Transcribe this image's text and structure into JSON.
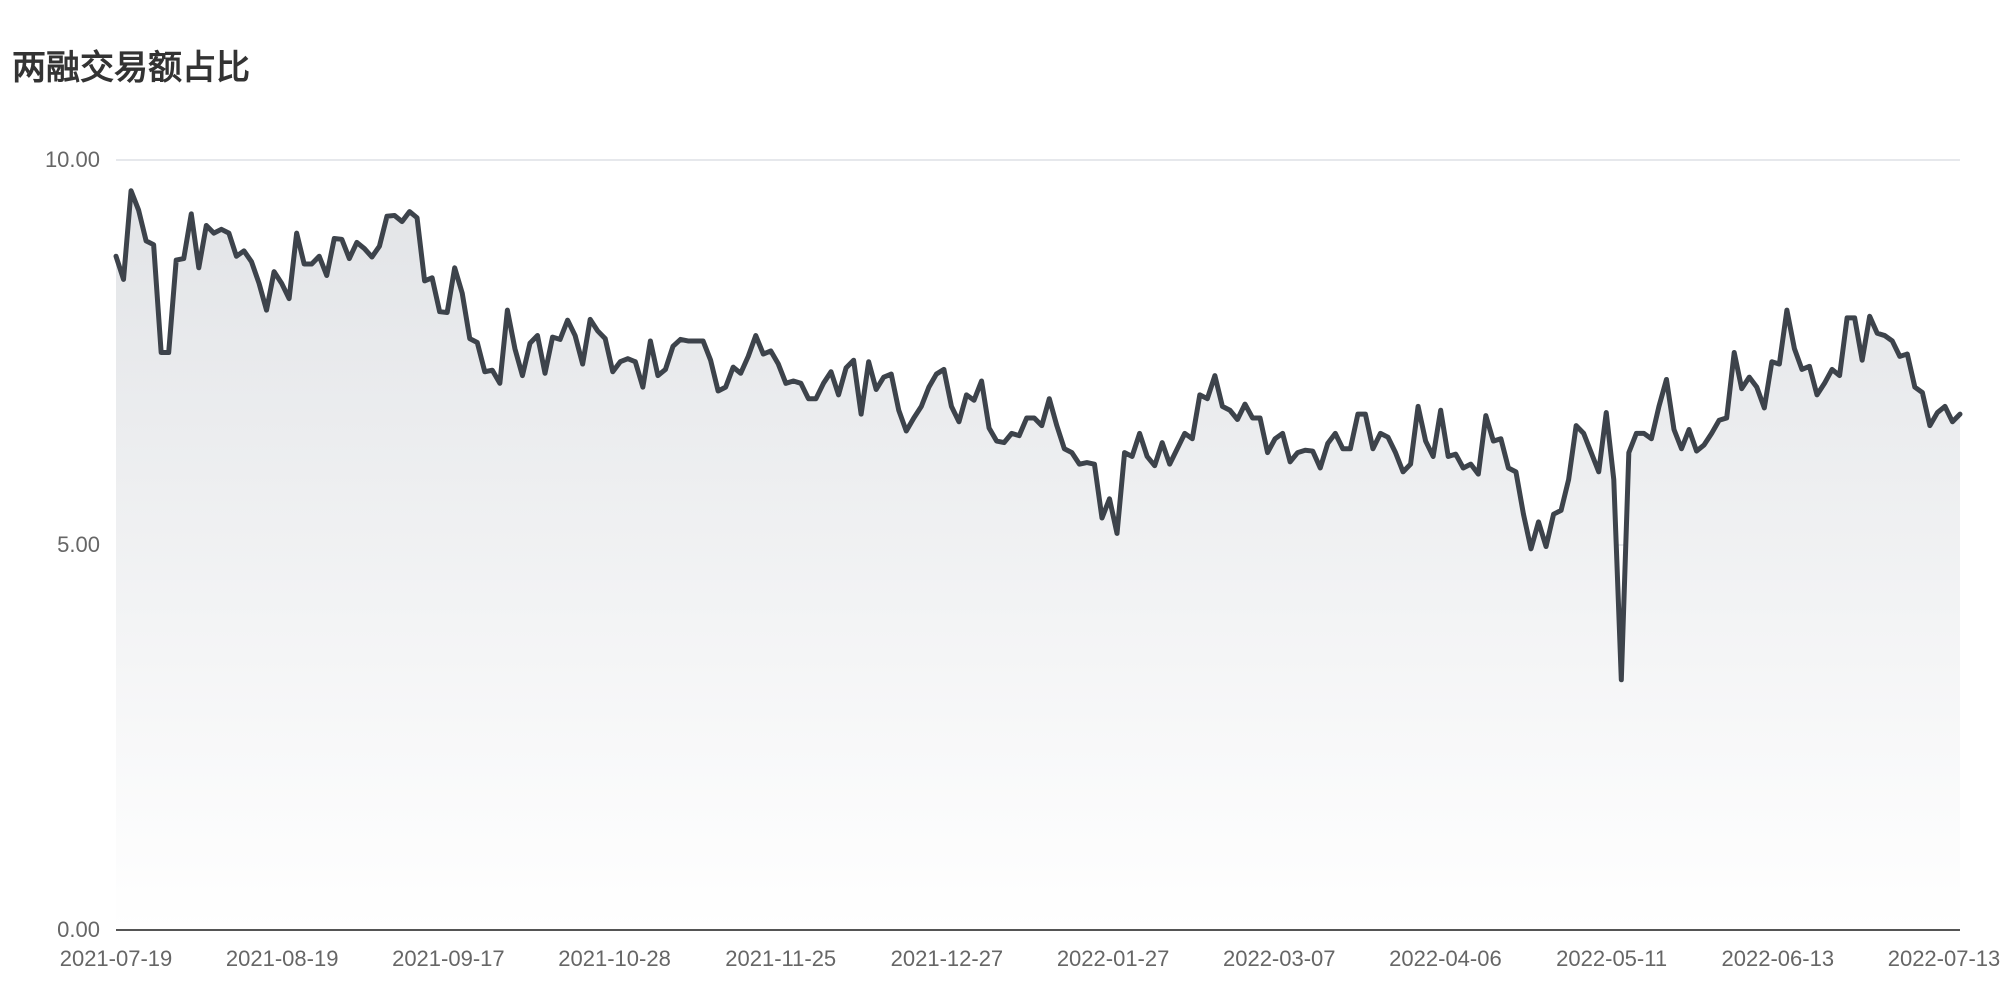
{
  "chart_data": {
    "type": "area",
    "title": "两融交易额占比",
    "xlabel": "",
    "ylabel": "",
    "ylim": [
      0,
      10
    ],
    "y_ticks": [
      "0.00",
      "5.00",
      "10.00"
    ],
    "x_tick_labels": [
      "2021-07-19",
      "2021-08-19",
      "2021-09-17",
      "2021-10-28",
      "2021-11-25",
      "2021-12-27",
      "2022-01-27",
      "2022-03-07",
      "2022-04-06",
      "2022-05-11",
      "2022-06-13",
      "2022-07-13"
    ],
    "grid": true,
    "legend": "none",
    "colors": {
      "line": "#3d434b",
      "grid": "#dde1e6",
      "area_top": "#e2e4e7",
      "area_bottom": "#ffffff"
    },
    "series": [
      {
        "values": [
          8.75,
          8.45,
          9.6,
          9.35,
          8.95,
          8.9,
          7.5,
          7.5,
          8.7,
          8.72,
          9.3,
          8.6,
          9.15,
          9.05,
          9.1,
          9.05,
          8.75,
          8.82,
          8.68,
          8.4,
          8.05,
          8.55,
          8.4,
          8.2,
          9.05,
          8.65,
          8.65,
          8.75,
          8.5,
          8.98,
          8.97,
          8.72,
          8.93,
          8.85,
          8.74,
          8.88,
          9.27,
          9.28,
          9.2,
          9.33,
          9.25,
          8.43,
          8.47,
          8.03,
          8.02,
          8.6,
          8.27,
          7.68,
          7.63,
          7.25,
          7.27,
          7.1,
          8.05,
          7.55,
          7.2,
          7.62,
          7.72,
          7.23,
          7.7,
          7.67,
          7.92,
          7.72,
          7.35,
          7.93,
          7.78,
          7.68,
          7.25,
          7.38,
          7.42,
          7.38,
          7.05,
          7.65,
          7.2,
          7.28,
          7.58,
          7.67,
          7.65,
          7.65,
          7.65,
          7.4,
          7.0,
          7.05,
          7.31,
          7.23,
          7.45,
          7.72,
          7.48,
          7.52,
          7.35,
          7.1,
          7.13,
          7.1,
          6.9,
          6.9,
          7.1,
          7.25,
          6.95,
          7.3,
          7.4,
          6.7,
          7.38,
          7.02,
          7.18,
          7.22,
          6.75,
          6.48,
          6.65,
          6.8,
          7.05,
          7.22,
          7.28,
          6.8,
          6.6,
          6.95,
          6.88,
          7.13,
          6.52,
          6.35,
          6.33,
          6.45,
          6.42,
          6.65,
          6.65,
          6.55,
          6.9,
          6.55,
          6.25,
          6.2,
          6.05,
          6.07,
          6.05,
          5.35,
          5.6,
          5.15,
          6.2,
          6.15,
          6.45,
          6.15,
          6.03,
          6.33,
          6.05,
          6.25,
          6.45,
          6.38,
          6.95,
          6.9,
          7.2,
          6.8,
          6.75,
          6.63,
          6.83,
          6.65,
          6.65,
          6.2,
          6.38,
          6.45,
          6.08,
          6.2,
          6.23,
          6.22,
          6.0,
          6.32,
          6.45,
          6.25,
          6.25,
          6.7,
          6.7,
          6.25,
          6.45,
          6.4,
          6.2,
          5.95,
          6.05,
          6.8,
          6.35,
          6.15,
          6.75,
          6.15,
          6.18,
          6.0,
          6.05,
          5.92,
          6.68,
          6.35,
          6.38,
          6.0,
          5.95,
          5.4,
          4.95,
          5.3,
          4.98,
          5.4,
          5.45,
          5.85,
          6.55,
          6.45,
          6.2,
          5.95,
          6.72,
          5.85,
          3.25,
          6.2,
          6.45,
          6.45,
          6.38,
          6.8,
          7.15,
          6.5,
          6.25,
          6.5,
          6.22,
          6.3,
          6.45,
          6.62,
          6.65,
          7.5,
          7.03,
          7.18,
          7.05,
          6.78,
          7.38,
          7.35,
          8.05,
          7.55,
          7.28,
          7.32,
          6.95,
          7.1,
          7.28,
          7.2,
          7.95,
          7.95,
          7.4,
          7.97,
          7.75,
          7.72,
          7.65,
          7.45,
          7.48,
          7.05,
          6.98,
          6.55,
          6.72,
          6.8,
          6.6,
          6.7
        ]
      }
    ]
  }
}
